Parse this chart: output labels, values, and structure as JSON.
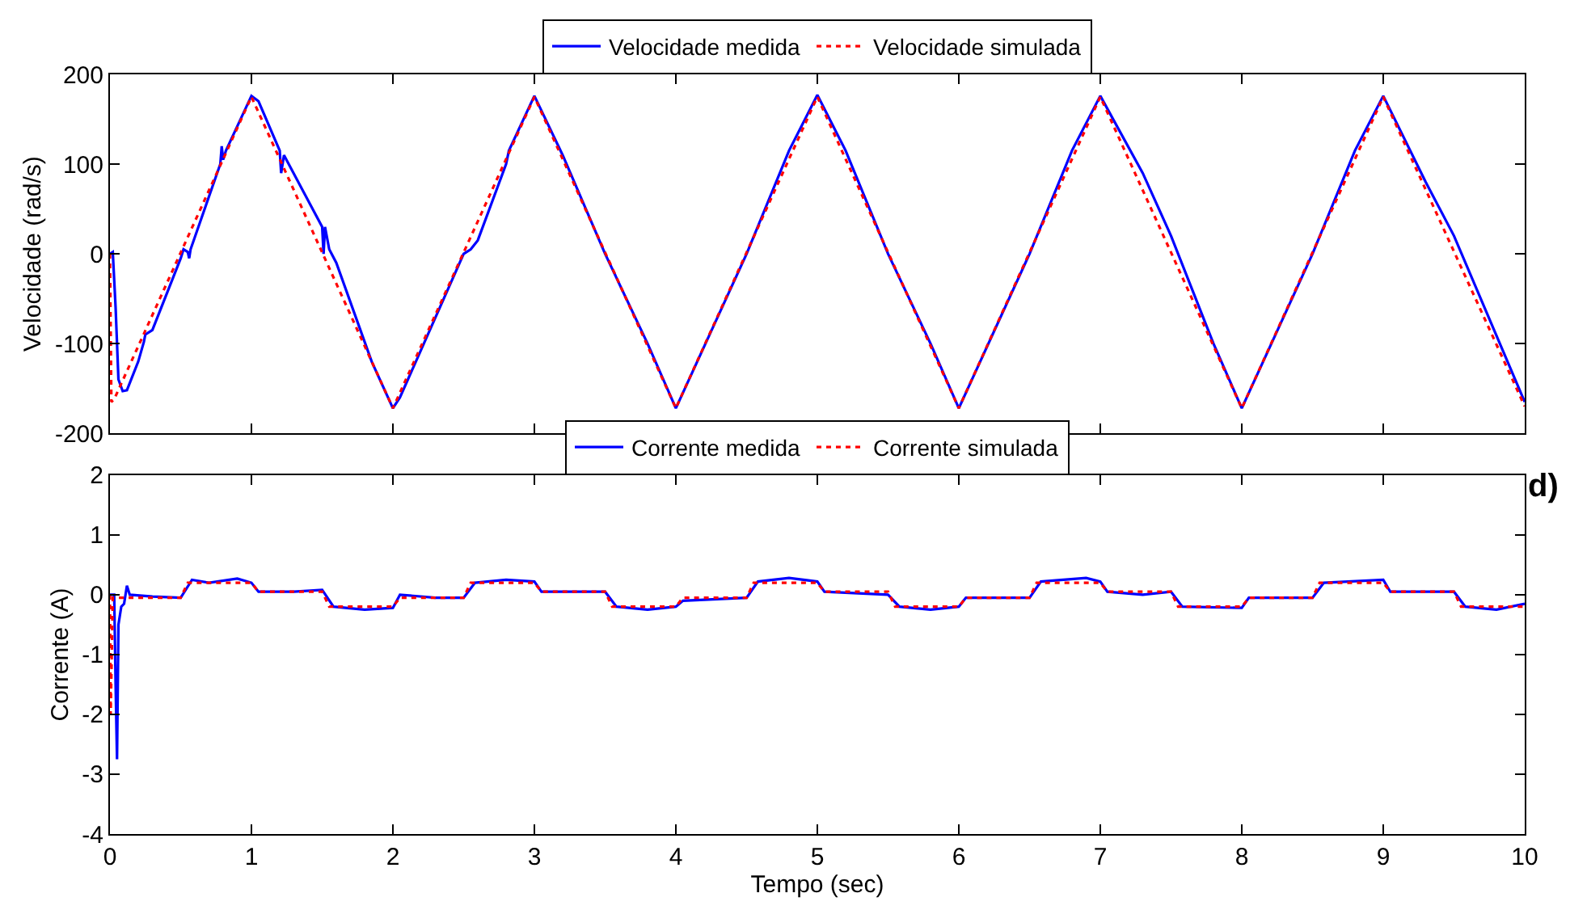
{
  "chart_data": [
    {
      "type": "line",
      "ylabel": "Velocidade (rad/s)",
      "xlim": [
        0,
        10
      ],
      "xticks": [
        0,
        1,
        2,
        3,
        4,
        5,
        6,
        7,
        8,
        9,
        10
      ],
      "ylim": [
        -200,
        200
      ],
      "yticks": [
        -200,
        -100,
        0,
        100,
        200
      ],
      "tick_labels": "y",
      "legend": "top",
      "series": [
        {
          "name": "Velocidade medida",
          "color": "#0000ff",
          "line_style": "solid",
          "x": [
            0,
            0.02,
            0.04,
            0.06,
            0.09,
            0.12,
            0.2,
            0.24,
            0.25,
            0.3,
            0.45,
            0.5,
            0.52,
            0.55,
            0.56,
            0.57,
            0.78,
            0.79,
            0.8,
            0.82,
            1.0,
            1.05,
            1.2,
            1.21,
            1.23,
            1.5,
            1.51,
            1.52,
            1.55,
            1.6,
            1.85,
            2.0,
            2.05,
            2.5,
            2.55,
            2.6,
            2.8,
            2.82,
            3.0,
            3.2,
            3.5,
            3.8,
            4.0,
            4.5,
            4.8,
            5.0,
            5.2,
            5.5,
            5.8,
            6.0,
            6.5,
            6.8,
            7.0,
            7.3,
            7.5,
            7.8,
            8.0,
            8.5,
            8.8,
            9.0,
            9.3,
            9.5,
            10
          ],
          "values": [
            0,
            2,
            -60,
            -140,
            -153,
            -152,
            -120,
            -98,
            -90,
            -85,
            -25,
            -5,
            5,
            2,
            -5,
            5,
            100,
            120,
            105,
            115,
            176,
            170,
            115,
            90,
            110,
            30,
            0,
            30,
            5,
            -10,
            -120,
            -172,
            -160,
            0,
            5,
            15,
            100,
            115,
            176,
            110,
            0,
            -100,
            -172,
            0,
            115,
            177,
            115,
            0,
            -100,
            -172,
            0,
            115,
            176,
            90,
            20,
            -100,
            -172,
            0,
            115,
            176,
            80,
            20,
            -165
          ]
        },
        {
          "name": "Velocidade simulada",
          "color": "#ff0000",
          "line_style": "dotted",
          "x": [
            0,
            0.01,
            0.03,
            1,
            2,
            3,
            4,
            5,
            6,
            7,
            8,
            9,
            10
          ],
          "values": [
            0,
            -165,
            -162,
            175,
            -172,
            175,
            -172,
            175,
            -172,
            175,
            -172,
            175,
            -170
          ]
        }
      ]
    },
    {
      "type": "line",
      "xlabel": "Tempo (sec)",
      "ylabel": "Corrente (A)",
      "xlim": [
        0,
        10
      ],
      "xticks": [
        0,
        1,
        2,
        3,
        4,
        5,
        6,
        7,
        8,
        9,
        10
      ],
      "ylim": [
        -4,
        2
      ],
      "yticks": [
        -4,
        -3,
        -2,
        -1,
        0,
        1,
        2
      ],
      "legend": "top",
      "annotations": [
        "d)"
      ],
      "series": [
        {
          "name": "Corrente medida",
          "color": "#0000ff",
          "line_style": "solid",
          "x": [
            0,
            0.03,
            0.04,
            0.05,
            0.06,
            0.08,
            0.1,
            0.12,
            0.14,
            0.3,
            0.5,
            0.58,
            0.7,
            0.9,
            1.0,
            1.05,
            1.3,
            1.5,
            1.58,
            1.8,
            2.0,
            2.05,
            2.3,
            2.5,
            2.58,
            2.8,
            3.0,
            3.05,
            3.5,
            3.58,
            3.8,
            4.0,
            4.05,
            4.5,
            4.58,
            4.8,
            5.0,
            5.05,
            5.5,
            5.58,
            5.8,
            6.0,
            6.05,
            6.5,
            6.58,
            6.9,
            7.0,
            7.05,
            7.3,
            7.5,
            7.58,
            8.0,
            8.05,
            8.5,
            8.58,
            9.0,
            9.05,
            9.5,
            9.58,
            9.8,
            10
          ],
          "values": [
            0,
            0,
            -1.5,
            -2.75,
            -0.5,
            -0.2,
            -0.15,
            0.15,
            0,
            -0.03,
            -0.05,
            0.25,
            0.2,
            0.27,
            0.2,
            0.05,
            0.05,
            0.08,
            -0.2,
            -0.25,
            -0.22,
            0,
            -0.05,
            -0.05,
            0.2,
            0.25,
            0.22,
            0.05,
            0.05,
            -0.2,
            -0.25,
            -0.2,
            -0.1,
            -0.05,
            0.22,
            0.28,
            0.22,
            0.05,
            0,
            -0.2,
            -0.25,
            -0.2,
            -0.05,
            -0.05,
            0.22,
            0.28,
            0.22,
            0.05,
            0,
            0.05,
            -0.2,
            -0.22,
            -0.05,
            -0.05,
            0.2,
            0.25,
            0.05,
            0.05,
            -0.2,
            -0.25,
            -0.15
          ]
        },
        {
          "name": "Corrente simulada",
          "color": "#ff0000",
          "line_style": "dotted",
          "x": [
            0,
            0.005,
            0.02,
            0.5,
            0.55,
            1,
            1.05,
            1.5,
            1.55,
            2,
            2.05,
            2.5,
            2.55,
            3,
            3.05,
            3.5,
            3.55,
            4,
            4.05,
            4.5,
            4.55,
            5,
            5.05,
            5.5,
            5.55,
            6,
            6.05,
            6.5,
            6.55,
            7,
            7.05,
            7.5,
            7.55,
            8,
            8.05,
            8.5,
            8.55,
            9,
            9.05,
            9.5,
            9.55,
            10
          ],
          "values": [
            0,
            -2,
            -0.05,
            -0.05,
            0.2,
            0.2,
            0.05,
            0.05,
            -0.2,
            -0.2,
            -0.05,
            -0.05,
            0.2,
            0.2,
            0.05,
            0.05,
            -0.2,
            -0.2,
            -0.05,
            -0.05,
            0.2,
            0.2,
            0.05,
            0.05,
            -0.2,
            -0.2,
            -0.05,
            -0.05,
            0.2,
            0.2,
            0.05,
            0.05,
            -0.2,
            -0.2,
            -0.05,
            -0.05,
            0.2,
            0.2,
            0.05,
            0.05,
            -0.2,
            -0.2
          ]
        }
      ]
    }
  ]
}
